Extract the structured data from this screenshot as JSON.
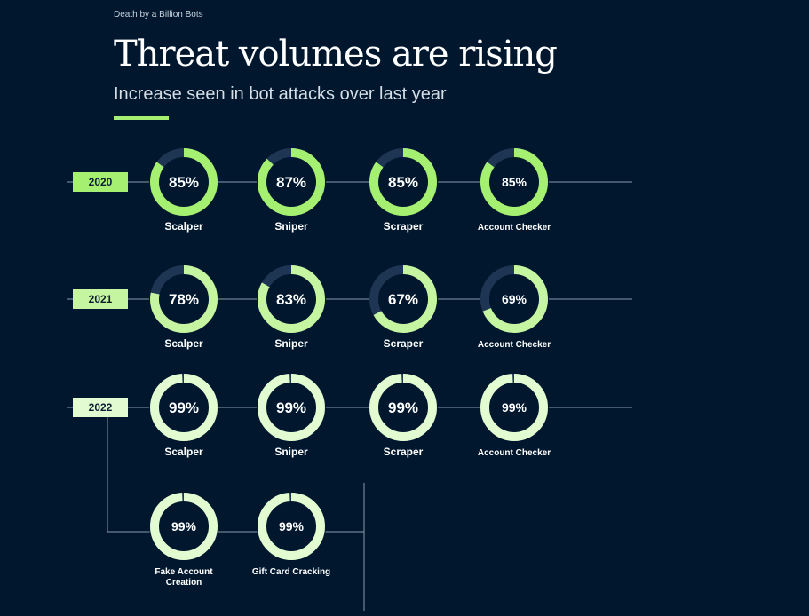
{
  "header": {
    "kicker": "Death by a Billion Bots",
    "title": "Threat volumes are rising",
    "subtitle": "Increase seen in bot attacks over last year"
  },
  "colors": {
    "background": "#00172e",
    "track": "#1e3553",
    "ring_2020": "#a5f070",
    "ring_2021": "#c5f5a0",
    "ring_2022": "#e3fbd0",
    "accent": "#a5f070"
  },
  "chart_data": {
    "type": "donut-grid",
    "unit": "%",
    "rows": [
      {
        "year": "2020",
        "items": [
          {
            "label": "Scalper",
            "value": 85,
            "text": "85%"
          },
          {
            "label": "Sniper",
            "value": 87,
            "text": "87%"
          },
          {
            "label": "Scraper",
            "value": 85,
            "text": "85%"
          },
          {
            "label": "Account Checker",
            "value": 85,
            "text": "85%"
          }
        ]
      },
      {
        "year": "2021",
        "items": [
          {
            "label": "Scalper",
            "value": 78,
            "text": "78%"
          },
          {
            "label": "Sniper",
            "value": 83,
            "text": "83%"
          },
          {
            "label": "Scraper",
            "value": 67,
            "text": "67%"
          },
          {
            "label": "Account Checker",
            "value": 69,
            "text": "69%"
          }
        ]
      },
      {
        "year": "2022",
        "items": [
          {
            "label": "Scalper",
            "value": 99,
            "text": "99%"
          },
          {
            "label": "Sniper",
            "value": 99,
            "text": "99%"
          },
          {
            "label": "Scraper",
            "value": 99,
            "text": "99%"
          },
          {
            "label": "Account Checker",
            "value": 99,
            "text": "99%"
          },
          {
            "label": "Fake Account Creation",
            "value": 99,
            "text": "99%"
          },
          {
            "label": "Gift Card Cracking",
            "value": 99,
            "text": "99%"
          }
        ]
      }
    ]
  }
}
